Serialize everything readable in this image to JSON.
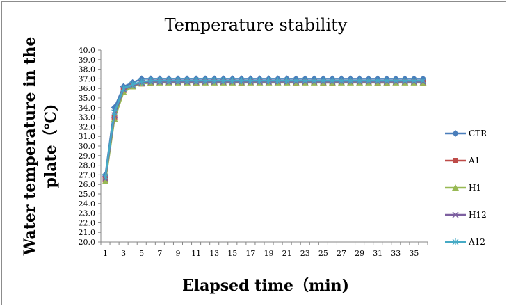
{
  "chart_data": {
    "type": "line",
    "title": "Temperature stability",
    "xlabel": "Elapsed time（min)",
    "ylabel_line1": "Water temperature in the",
    "ylabel_line2": "plate（℃)",
    "x": [
      1,
      2,
      3,
      4,
      5,
      6,
      7,
      8,
      9,
      10,
      11,
      12,
      13,
      14,
      15,
      16,
      17,
      18,
      19,
      20,
      21,
      22,
      23,
      24,
      25,
      26,
      27,
      28,
      29,
      30,
      31,
      32,
      33,
      34,
      35,
      36
    ],
    "x_tick_labels": [
      "1",
      "3",
      "5",
      "7",
      "9",
      "11",
      "13",
      "15",
      "17",
      "19",
      "21",
      "23",
      "25",
      "27",
      "29",
      "31",
      "33",
      "35"
    ],
    "ylim": [
      20.0,
      40.0
    ],
    "y_tick_labels": [
      "20.0",
      "21.0",
      "22.0",
      "23.0",
      "24.0",
      "25.0",
      "26.0",
      "27.0",
      "28.0",
      "29.0",
      "30.0",
      "31.0",
      "32.0",
      "33.0",
      "34.0",
      "35.0",
      "36.0",
      "37.0",
      "38.0",
      "39.0",
      "40.0"
    ],
    "legend_position": "right",
    "grid": false,
    "series": [
      {
        "name": "CTR",
        "color": "#4a7ebb",
        "marker": "diamond",
        "values": [
          27.0,
          34.0,
          36.2,
          36.6,
          37.0,
          37.0,
          37.0,
          37.0,
          37.0,
          37.0,
          37.0,
          37.0,
          37.0,
          37.0,
          37.0,
          37.0,
          37.0,
          37.0,
          37.0,
          37.0,
          37.0,
          37.0,
          37.0,
          37.0,
          37.0,
          37.0,
          37.0,
          37.0,
          37.0,
          37.0,
          37.0,
          37.0,
          37.0,
          37.0,
          37.0,
          37.0
        ]
      },
      {
        "name": "A1",
        "color": "#be4b48",
        "marker": "square",
        "values": [
          26.5,
          33.0,
          35.8,
          36.2,
          36.5,
          36.6,
          36.7,
          36.7,
          36.7,
          36.7,
          36.6,
          36.7,
          36.7,
          36.7,
          36.7,
          36.6,
          36.7,
          36.7,
          36.7,
          36.7,
          36.7,
          36.6,
          36.7,
          36.7,
          36.6,
          36.6,
          36.7,
          36.7,
          36.7,
          36.7,
          36.6,
          36.6,
          36.7,
          36.7,
          36.7,
          36.6
        ]
      },
      {
        "name": "H1",
        "color": "#98b954",
        "marker": "triangle",
        "values": [
          26.3,
          32.8,
          35.6,
          36.2,
          36.5,
          36.6,
          36.6,
          36.6,
          36.6,
          36.6,
          36.6,
          36.6,
          36.6,
          36.6,
          36.6,
          36.6,
          36.6,
          36.6,
          36.6,
          36.6,
          36.6,
          36.6,
          36.6,
          36.6,
          36.6,
          36.6,
          36.6,
          36.6,
          36.6,
          36.6,
          36.6,
          36.6,
          36.6,
          36.6,
          36.6,
          36.6
        ]
      },
      {
        "name": "H12",
        "color": "#7d60a0",
        "marker": "x",
        "values": [
          26.6,
          33.2,
          35.9,
          36.3,
          36.6,
          36.7,
          36.7,
          36.7,
          36.7,
          36.7,
          36.7,
          36.7,
          36.7,
          36.7,
          36.7,
          36.7,
          36.7,
          36.7,
          36.7,
          36.7,
          36.7,
          36.7,
          36.7,
          36.7,
          36.7,
          36.7,
          36.7,
          36.7,
          36.7,
          36.7,
          36.7,
          36.7,
          36.7,
          36.7,
          36.7,
          36.7
        ]
      },
      {
        "name": "A12",
        "color": "#46aac5",
        "marker": "star",
        "values": [
          26.8,
          33.5,
          36.0,
          36.4,
          36.7,
          36.8,
          36.8,
          36.8,
          36.8,
          36.8,
          36.8,
          36.8,
          36.8,
          36.8,
          36.8,
          36.8,
          36.8,
          36.8,
          36.8,
          36.8,
          36.8,
          36.8,
          36.8,
          36.8,
          36.8,
          36.8,
          36.8,
          36.8,
          36.8,
          36.8,
          36.8,
          36.8,
          36.8,
          36.8,
          36.8,
          36.8
        ]
      }
    ]
  }
}
